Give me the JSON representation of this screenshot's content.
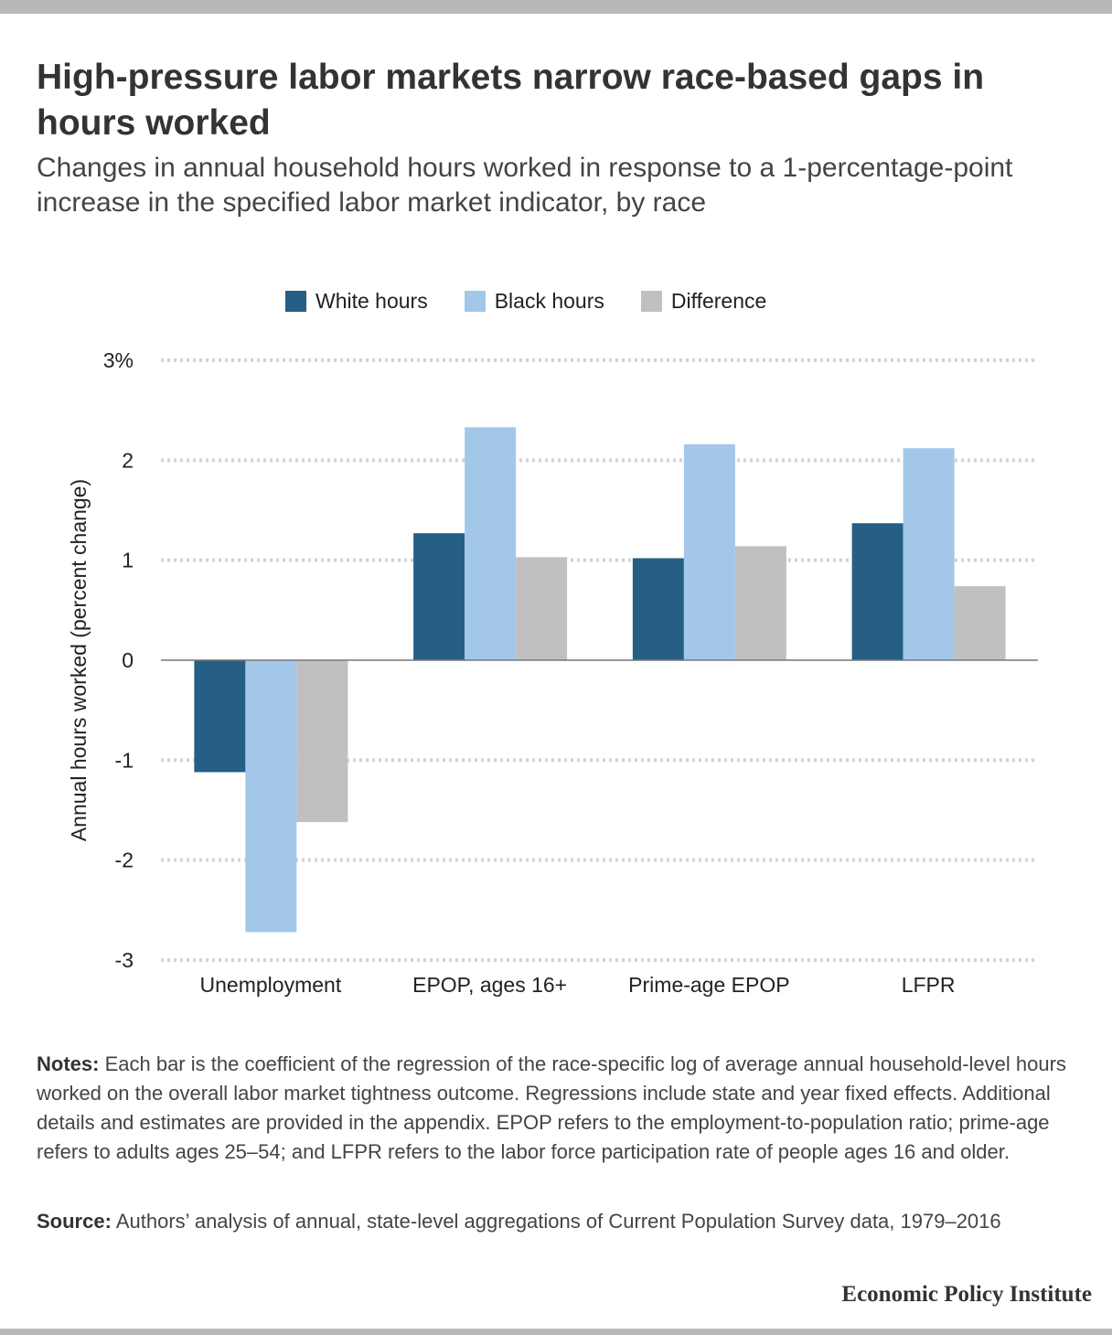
{
  "header": {
    "title": "High-pressure labor markets narrow race-based gaps in hours worked",
    "subtitle": "Changes in annual household hours worked in response to a 1-percentage-point increase in the specified labor market indicator, by race"
  },
  "legend": [
    {
      "label": "White hours",
      "color": "#255f85"
    },
    {
      "label": "Black hours",
      "color": "#a2c7e9"
    },
    {
      "label": "Difference",
      "color": "#c0c0c0"
    }
  ],
  "chart_data": {
    "type": "bar",
    "categories": [
      "Unemployment",
      "EPOP, ages 16+",
      "Prime-age EPOP",
      "LFPR"
    ],
    "series": [
      {
        "name": "White hours",
        "color": "#255f85",
        "values": [
          -1.12,
          1.27,
          1.02,
          1.37
        ]
      },
      {
        "name": "Black hours",
        "color": "#a2c7e9",
        "values": [
          -2.72,
          2.33,
          2.16,
          2.12
        ]
      },
      {
        "name": "Difference",
        "color": "#c0c0c0",
        "values": [
          -1.62,
          1.03,
          1.14,
          0.74
        ]
      }
    ],
    "ylabel": "Annual hours worked (percent change)",
    "ylim": [
      -3,
      3
    ],
    "yticks": [
      3,
      2,
      1,
      0,
      -1,
      -2,
      -3
    ],
    "ytick_labels": [
      "3%",
      "2",
      "1",
      "0",
      "-1",
      "-2",
      "-3"
    ],
    "grid": true,
    "legend_position": "top-center"
  },
  "footer": {
    "notes_label": "Notes:",
    "notes_text": "Each bar is the coefficient of the regression of the race-specific log of average annual household-level hours worked on the overall labor market tightness outcome. Regressions include state and year fixed effects. Additional details and estimates are provided in the appendix. EPOP refers to the employment-to-population ratio; prime-age refers to adults ages 25–54; and LFPR refers to the labor force participation rate of people ages 16 and older.",
    "source_label": "Source:",
    "source_text": "Authors’ analysis of annual, state-level aggregations of Current Population Survey data, 1979–2016",
    "brand": "Economic Policy Institute"
  }
}
